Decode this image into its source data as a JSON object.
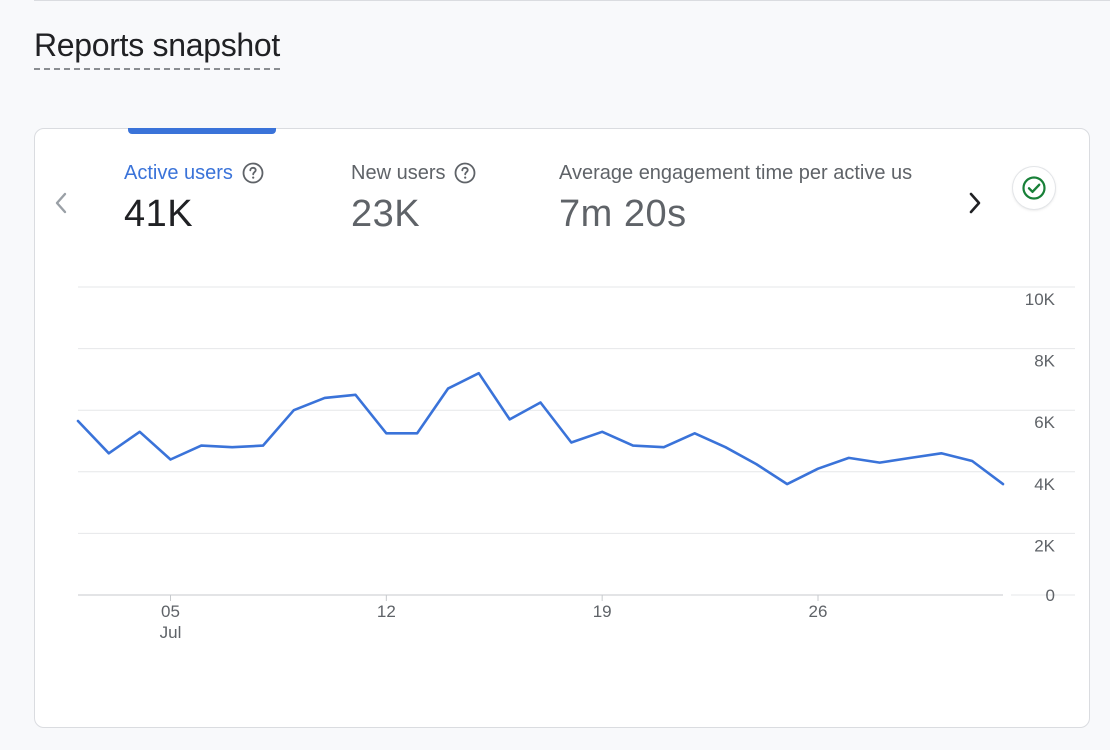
{
  "page": {
    "title": "Reports snapshot"
  },
  "metrics": [
    {
      "label": "Active users",
      "value": "41K",
      "active": true
    },
    {
      "label": "New users",
      "value": "23K",
      "active": false
    },
    {
      "label": "Average engagement time per active us",
      "value": "7m 20s",
      "active": false
    }
  ],
  "icons": {
    "prev": "chevron-left-icon",
    "next": "chevron-right-icon",
    "help": "help-circle-icon",
    "status": "check-circle-icon"
  },
  "colors": {
    "accent": "#3a73d9",
    "line": "#3a73d9",
    "status_green": "#188038"
  },
  "chart_data": {
    "type": "line",
    "series": [
      {
        "values": [
          5650,
          4600,
          5300,
          4400,
          4850,
          4800,
          4850,
          6000,
          6400,
          6500,
          5250,
          5250,
          6700,
          7200,
          5700,
          6250,
          4950,
          5300,
          4850,
          4800,
          5250,
          4800,
          4250,
          3600,
          4100,
          4450,
          4300,
          4450,
          4600,
          4350,
          3600
        ]
      }
    ],
    "x_day_start": 2,
    "x_ticks": [
      {
        "day": 5,
        "label": "05",
        "sublabel": "Jul"
      },
      {
        "day": 12,
        "label": "12",
        "sublabel": ""
      },
      {
        "day": 19,
        "label": "19",
        "sublabel": ""
      },
      {
        "day": 26,
        "label": "26",
        "sublabel": ""
      }
    ],
    "y_ticks": [
      {
        "value": 0,
        "label": "0"
      },
      {
        "value": 2000,
        "label": "2K"
      },
      {
        "value": 4000,
        "label": "4K"
      },
      {
        "value": 6000,
        "label": "6K"
      },
      {
        "value": 8000,
        "label": "8K"
      },
      {
        "value": 10000,
        "label": "10K"
      }
    ],
    "ylim": [
      0,
      10000
    ],
    "grid": true,
    "y_axis_side": "right"
  }
}
